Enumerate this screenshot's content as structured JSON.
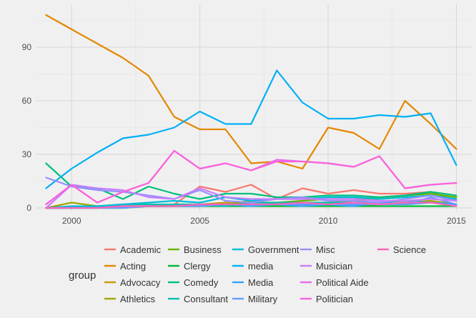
{
  "chart_data": {
    "type": "line",
    "title": "",
    "xlabel": "",
    "ylabel": "",
    "xlim": [
      1998.6,
      2015.6
    ],
    "ylim": [
      -2,
      114
    ],
    "x_ticks": [
      2000,
      2005,
      2010,
      2015
    ],
    "y_ticks": [
      0,
      30,
      60,
      90
    ],
    "grid": true,
    "legend": {
      "title": "group",
      "position": "bottom",
      "columns": 5
    },
    "x": [
      1999,
      2000,
      2001,
      2002,
      2003,
      2004,
      2005,
      2006,
      2007,
      2008,
      2009,
      2010,
      2011,
      2012,
      2013,
      2014,
      2015
    ],
    "series": [
      {
        "name": "Academic",
        "color": "#F8766D",
        "values": [
          0,
          0,
          1,
          1,
          1,
          2,
          12,
          9,
          13,
          5,
          11,
          8,
          10,
          8,
          8,
          9,
          4
        ]
      },
      {
        "name": "Acting",
        "color": "#E58700",
        "values": [
          108,
          100,
          92,
          84,
          74,
          51,
          44,
          44,
          25,
          26,
          22,
          45,
          42,
          33,
          60,
          47,
          33
        ]
      },
      {
        "name": "Advocacy",
        "color": "#C99800",
        "values": [
          0,
          0,
          0,
          1,
          1,
          2,
          2,
          3,
          2,
          2,
          3,
          3,
          4,
          5,
          6,
          7,
          5
        ]
      },
      {
        "name": "Athletics",
        "color": "#A3A500",
        "values": [
          0,
          3,
          1,
          0,
          1,
          1,
          1,
          2,
          4,
          2,
          2,
          2,
          1,
          2,
          3,
          4,
          2
        ]
      },
      {
        "name": "Business",
        "color": "#6BB100",
        "values": [
          0,
          0,
          0,
          1,
          1,
          1,
          1,
          2,
          3,
          3,
          4,
          5,
          5,
          6,
          7,
          8,
          6
        ]
      },
      {
        "name": "Clergy",
        "color": "#00BA38",
        "values": [
          0,
          0,
          0,
          0,
          1,
          1,
          1,
          1,
          1,
          1,
          1,
          1,
          1,
          1,
          1,
          1,
          1
        ]
      },
      {
        "name": "Comedy",
        "color": "#00BF7D",
        "values": [
          25,
          12,
          11,
          5,
          12,
          8,
          5,
          8,
          8,
          6,
          6,
          7,
          7,
          6,
          7,
          9,
          7
        ]
      },
      {
        "name": "Consultant",
        "color": "#00C0AF",
        "values": [
          0,
          0,
          1,
          2,
          2,
          2,
          2,
          1,
          3,
          3,
          3,
          3,
          3,
          3,
          4,
          3,
          2
        ]
      },
      {
        "name": "Government",
        "color": "#00BCD8",
        "values": [
          0,
          1,
          1,
          2,
          3,
          4,
          3,
          6,
          4,
          5,
          5,
          6,
          6,
          5,
          6,
          7,
          5
        ]
      },
      {
        "name": "media",
        "color": "#00B0F6",
        "values": [
          11,
          22,
          31,
          39,
          41,
          45,
          54,
          47,
          47,
          77,
          59,
          50,
          50,
          52,
          51,
          53,
          24
        ]
      },
      {
        "name": "Media",
        "color": "#35A2FF",
        "values": [
          0,
          0,
          0,
          1,
          1,
          1,
          2,
          2,
          1,
          2,
          1,
          2,
          1,
          3,
          2,
          3,
          2
        ]
      },
      {
        "name": "Military",
        "color": "#619CFF",
        "values": [
          0,
          0,
          0,
          0,
          1,
          1,
          1,
          2,
          2,
          2,
          2,
          2,
          2,
          2,
          2,
          6,
          2
        ]
      },
      {
        "name": "Misc",
        "color": "#9590FF",
        "values": [
          17,
          12,
          10,
          9,
          7,
          5,
          10,
          4,
          3,
          5,
          6,
          4,
          4,
          3,
          5,
          7,
          4
        ]
      },
      {
        "name": "Musician",
        "color": "#C77CFF",
        "values": [
          0,
          13,
          11,
          10,
          6,
          5,
          11,
          6,
          5,
          5,
          5,
          5,
          5,
          4,
          4,
          5,
          4
        ]
      },
      {
        "name": "Political Aide",
        "color": "#E76BF3",
        "values": [
          2,
          13,
          3,
          9,
          14,
          32,
          22,
          25,
          21,
          27,
          26,
          25,
          23,
          29,
          11,
          13,
          14
        ]
      },
      {
        "name": "Politician",
        "color": "#FA62DB",
        "values": [
          2,
          13,
          3,
          9,
          14,
          32,
          22,
          25,
          21,
          26,
          26,
          25,
          23,
          29,
          11,
          13,
          14
        ]
      },
      {
        "name": "Science",
        "color": "#FF62BC",
        "values": [
          0,
          0,
          0,
          1,
          1,
          1,
          2,
          2,
          2,
          2,
          3,
          2,
          3,
          2,
          3,
          3,
          1
        ]
      }
    ]
  }
}
